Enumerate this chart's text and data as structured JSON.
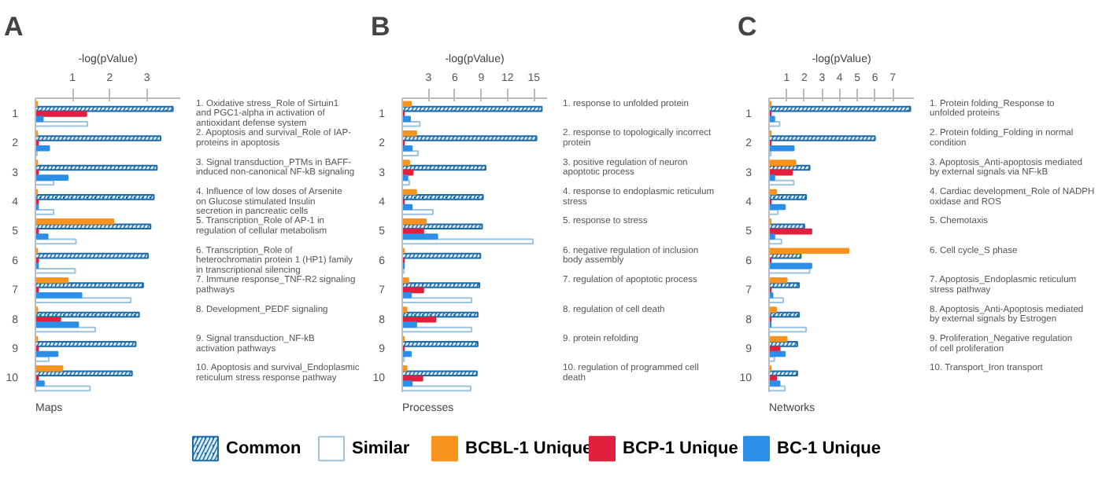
{
  "chart_data": [
    {
      "type": "bar",
      "orientation": "horizontal",
      "title": "A",
      "subtitle": "Maps",
      "xlabel": "-log(pValue)",
      "legend": "bottom",
      "grid": false,
      "categories": [
        "1",
        "2",
        "3",
        "4",
        "5",
        "6",
        "7",
        "8",
        "9",
        "10"
      ],
      "xlim": [
        0,
        3.9
      ],
      "xticks": [
        1,
        2,
        3
      ],
      "series": [
        {
          "name": "Common",
          "color": "#1f6aa5",
          "values": [
            3.7,
            3.37,
            3.27,
            3.19,
            3.1,
            3.03,
            2.9,
            2.79,
            2.7,
            2.6
          ]
        },
        {
          "name": "Similar",
          "color": "#9cc3dc",
          "values": [
            1.4,
            0.04,
            0.49,
            0.49,
            1.09,
            1.07,
            2.57,
            1.61,
            0.36,
            1.47
          ]
        },
        {
          "name": "BCBL-1 Unique",
          "color": "#f7931e",
          "values": [
            0.05,
            0.05,
            0.05,
            0.05,
            2.1,
            0.05,
            0.87,
            0.05,
            0.05,
            0.73
          ]
        },
        {
          "name": "BCP-1 Unique",
          "color": "#e0203c",
          "values": [
            1.37,
            0.07,
            0.07,
            0.07,
            0.07,
            0.07,
            0.07,
            0.67,
            0.07,
            0.07
          ]
        },
        {
          "name": "BC-1 Unique",
          "color": "#2b8ee8",
          "values": [
            0.2,
            0.37,
            0.87,
            0.07,
            0.33,
            0.07,
            1.24,
            1.15,
            0.6,
            0.23
          ]
        }
      ],
      "annotations": [
        "1. Oxidative stress_Role of Sirtuin1 and PGC1-alpha in activation of antioxidant defense system",
        "2. Apoptosis and survival_Role of IAP-proteins in apoptosis",
        "3. Signal transduction_PTMs in BAFF-induced non-canonical NF-kB signaling",
        "4. Influence of low doses of Arsenite on Glucose stimulated Insulin secretion in pancreatic cells",
        "5. Transcription_Role of AP-1 in regulation of cellular metabolism",
        "6. Transcription_Role of heterochromatin protein 1 (HP1) family in transcriptional silencing",
        "7. Immune response_TNF-R2 signaling pathways",
        "8. Development_PEDF signaling",
        "9. Signal transduction_NF-kB activation pathways",
        "10. Apoptosis and survival_Endoplasmic reticulum stress response pathway"
      ]
    },
    {
      "type": "bar",
      "orientation": "horizontal",
      "title": "B",
      "subtitle": "Processes",
      "xlabel": "-log(pValue)",
      "grid": false,
      "categories": [
        "1",
        "2",
        "3",
        "4",
        "5",
        "6",
        "7",
        "8",
        "9",
        "10"
      ],
      "xlim": [
        0,
        16.5
      ],
      "xticks": [
        3,
        6,
        9,
        12,
        15
      ],
      "series": [
        {
          "name": "Common",
          "color": "#1f6aa5",
          "values": [
            15.9,
            15.3,
            9.5,
            9.2,
            9.1,
            8.9,
            8.8,
            8.6,
            8.6,
            8.5
          ]
        },
        {
          "name": "Similar",
          "color": "#9cc3dc",
          "values": [
            2.0,
            1.8,
            0.8,
            3.5,
            14.9,
            0.2,
            7.9,
            7.9,
            0.2,
            7.8
          ]
        },
        {
          "name": "BCBL-1 Unique",
          "color": "#f7931e",
          "values": [
            1.0,
            1.6,
            0.8,
            1.6,
            2.7,
            0.2,
            0.7,
            0.5,
            0.2,
            0.5
          ]
        },
        {
          "name": "BCP-1 Unique",
          "color": "#e0203c",
          "values": [
            0.2,
            0.2,
            1.2,
            0.2,
            2.4,
            0.2,
            2.4,
            3.8,
            0.2,
            2.3
          ]
        },
        {
          "name": "BC-1 Unique",
          "color": "#2b8ee8",
          "values": [
            0.9,
            1.1,
            0.6,
            1.1,
            4.0,
            0.2,
            1.0,
            1.6,
            1.0,
            1.1
          ]
        }
      ],
      "annotations": [
        "1. response to unfolded protein",
        "2. response to topologically incorrect protein",
        "3. positive regulation of neuron apoptotic process",
        "4. response to endoplasmic reticulum stress",
        "5. response to stress",
        "6. negative regulation of inclusion body assembly",
        "7. regulation of apoptotic process",
        "8. regulation of cell death",
        "9. protein refolding",
        "10. regulation of programmed cell death"
      ]
    },
    {
      "type": "bar",
      "orientation": "horizontal",
      "title": "C",
      "subtitle": "Networks",
      "xlabel": "-log(pValue)",
      "grid": false,
      "categories": [
        "1",
        "2",
        "3",
        "4",
        "5",
        "6",
        "7",
        "8",
        "9",
        "10"
      ],
      "xlim": [
        0,
        8.2
      ],
      "xticks": [
        1,
        2,
        3,
        4,
        5,
        6,
        7
      ],
      "series": [
        {
          "name": "Common",
          "color": "#1f6aa5",
          "values": [
            8.0,
            6.0,
            2.3,
            2.1,
            2.0,
            1.8,
            1.7,
            1.7,
            1.6,
            1.6
          ]
        },
        {
          "name": "Similar",
          "color": "#9cc3dc",
          "values": [
            0.6,
            0.1,
            1.4,
            0.5,
            0.7,
            2.3,
            0.8,
            2.1,
            0.3,
            0.9
          ]
        },
        {
          "name": "BCBL-1 Unique",
          "color": "#f7931e",
          "values": [
            0.1,
            0.1,
            1.5,
            0.4,
            0.1,
            4.5,
            1.0,
            0.4,
            1.0,
            0.1
          ]
        },
        {
          "name": "BCP-1 Unique",
          "color": "#e0203c",
          "values": [
            0.1,
            0.1,
            1.3,
            0.1,
            2.4,
            0.1,
            0.1,
            0.1,
            0.6,
            0.4
          ]
        },
        {
          "name": "BC-1 Unique",
          "color": "#2b8ee8",
          "values": [
            0.3,
            1.4,
            0.3,
            0.9,
            0.3,
            2.4,
            0.2,
            0.1,
            0.9,
            0.6
          ]
        }
      ],
      "annotations": [
        "1. Protein folding_Response to unfolded proteins",
        "2. Protein folding_Folding in normal condition",
        "3. Apoptosis_Anti-apoptosis mediated by external signals via NF-kB",
        "4. Cardiac development_Role of NADPH oxidase and ROS",
        "5. Chemotaxis",
        "6. Cell cycle_S phase",
        "7. Apoptosis_Endoplasmic reticulum stress pathway",
        "8. Apoptosis_Anti-Apoptosis mediated by external signals by Estrogen",
        "9. Proliferation_Negative regulation of cell proliferation",
        "10. Transport_Iron transport"
      ]
    }
  ]
}
